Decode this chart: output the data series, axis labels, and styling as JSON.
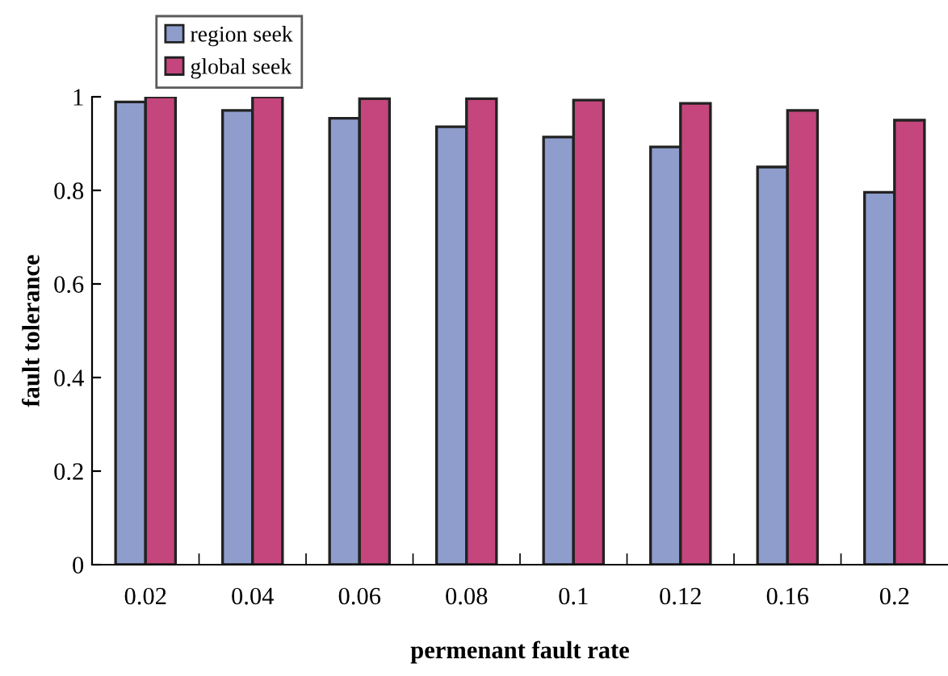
{
  "chart_data": {
    "type": "bar",
    "xlabel": "permenant fault rate",
    "ylabel": "fault tolerance",
    "categories": [
      "0.02",
      "0.04",
      "0.06",
      "0.08",
      "0.1",
      "0.12",
      "0.16",
      "0.2"
    ],
    "series": [
      {
        "name": "region seek",
        "color": "#8e9dcc",
        "values": [
          0.989,
          0.971,
          0.954,
          0.936,
          0.914,
          0.893,
          0.85,
          0.796
        ]
      },
      {
        "name": "global seek",
        "color": "#c4467c",
        "values": [
          1.0,
          1.0,
          0.996,
          0.996,
          0.993,
          0.986,
          0.971,
          0.95
        ]
      }
    ],
    "ylim": [
      0,
      1
    ],
    "yticks": [
      0,
      0.2,
      0.4,
      0.6,
      0.8,
      1
    ],
    "grid": false,
    "legend": "top left"
  }
}
